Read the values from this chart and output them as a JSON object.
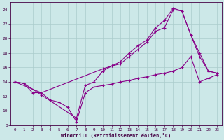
{
  "xlabel": "Windchill (Refroidissement éolien,°C)",
  "background_color": "#cce8e8",
  "grid_color": "#aacccc",
  "line_color": "#880088",
  "xlim": [
    -0.5,
    23.5
  ],
  "ylim": [
    8,
    25
  ],
  "yticks": [
    8,
    10,
    12,
    14,
    16,
    18,
    20,
    22,
    24
  ],
  "xticks": [
    0,
    1,
    2,
    3,
    4,
    5,
    6,
    7,
    8,
    9,
    10,
    11,
    12,
    13,
    14,
    15,
    16,
    17,
    18,
    19,
    20,
    21,
    22,
    23
  ],
  "series1_x": [
    0,
    1,
    2,
    3,
    4,
    5,
    6,
    7,
    8,
    9,
    10,
    11,
    12,
    13,
    14,
    15,
    16,
    17,
    18,
    19,
    20,
    21,
    22,
    23
  ],
  "series1_y": [
    14.0,
    13.8,
    12.5,
    12.5,
    11.5,
    11.2,
    10.5,
    8.5,
    12.5,
    13.3,
    13.5,
    13.7,
    14.0,
    14.2,
    14.5,
    14.7,
    15.0,
    15.2,
    15.5,
    16.0,
    17.5,
    14.0,
    14.5,
    15.0
  ],
  "series2_x": [
    0,
    1,
    3,
    7,
    8,
    9,
    10,
    11,
    12,
    13,
    14,
    15,
    16,
    17,
    18,
    19,
    20,
    21,
    22,
    23
  ],
  "series2_y": [
    14.0,
    13.8,
    12.2,
    9.0,
    13.5,
    14.0,
    15.5,
    16.2,
    16.5,
    17.5,
    18.5,
    19.5,
    21.0,
    21.5,
    24.0,
    23.8,
    20.5,
    18.0,
    15.5,
    15.2
  ],
  "series3_x": [
    0,
    3,
    10,
    11,
    12,
    13,
    14,
    15,
    16,
    17,
    18,
    19,
    20,
    21,
    22,
    23
  ],
  "series3_y": [
    14.0,
    12.5,
    15.8,
    16.2,
    16.8,
    18.0,
    19.0,
    19.8,
    21.5,
    22.5,
    24.2,
    23.8,
    20.5,
    17.5,
    15.5,
    15.2
  ],
  "marker": "+"
}
